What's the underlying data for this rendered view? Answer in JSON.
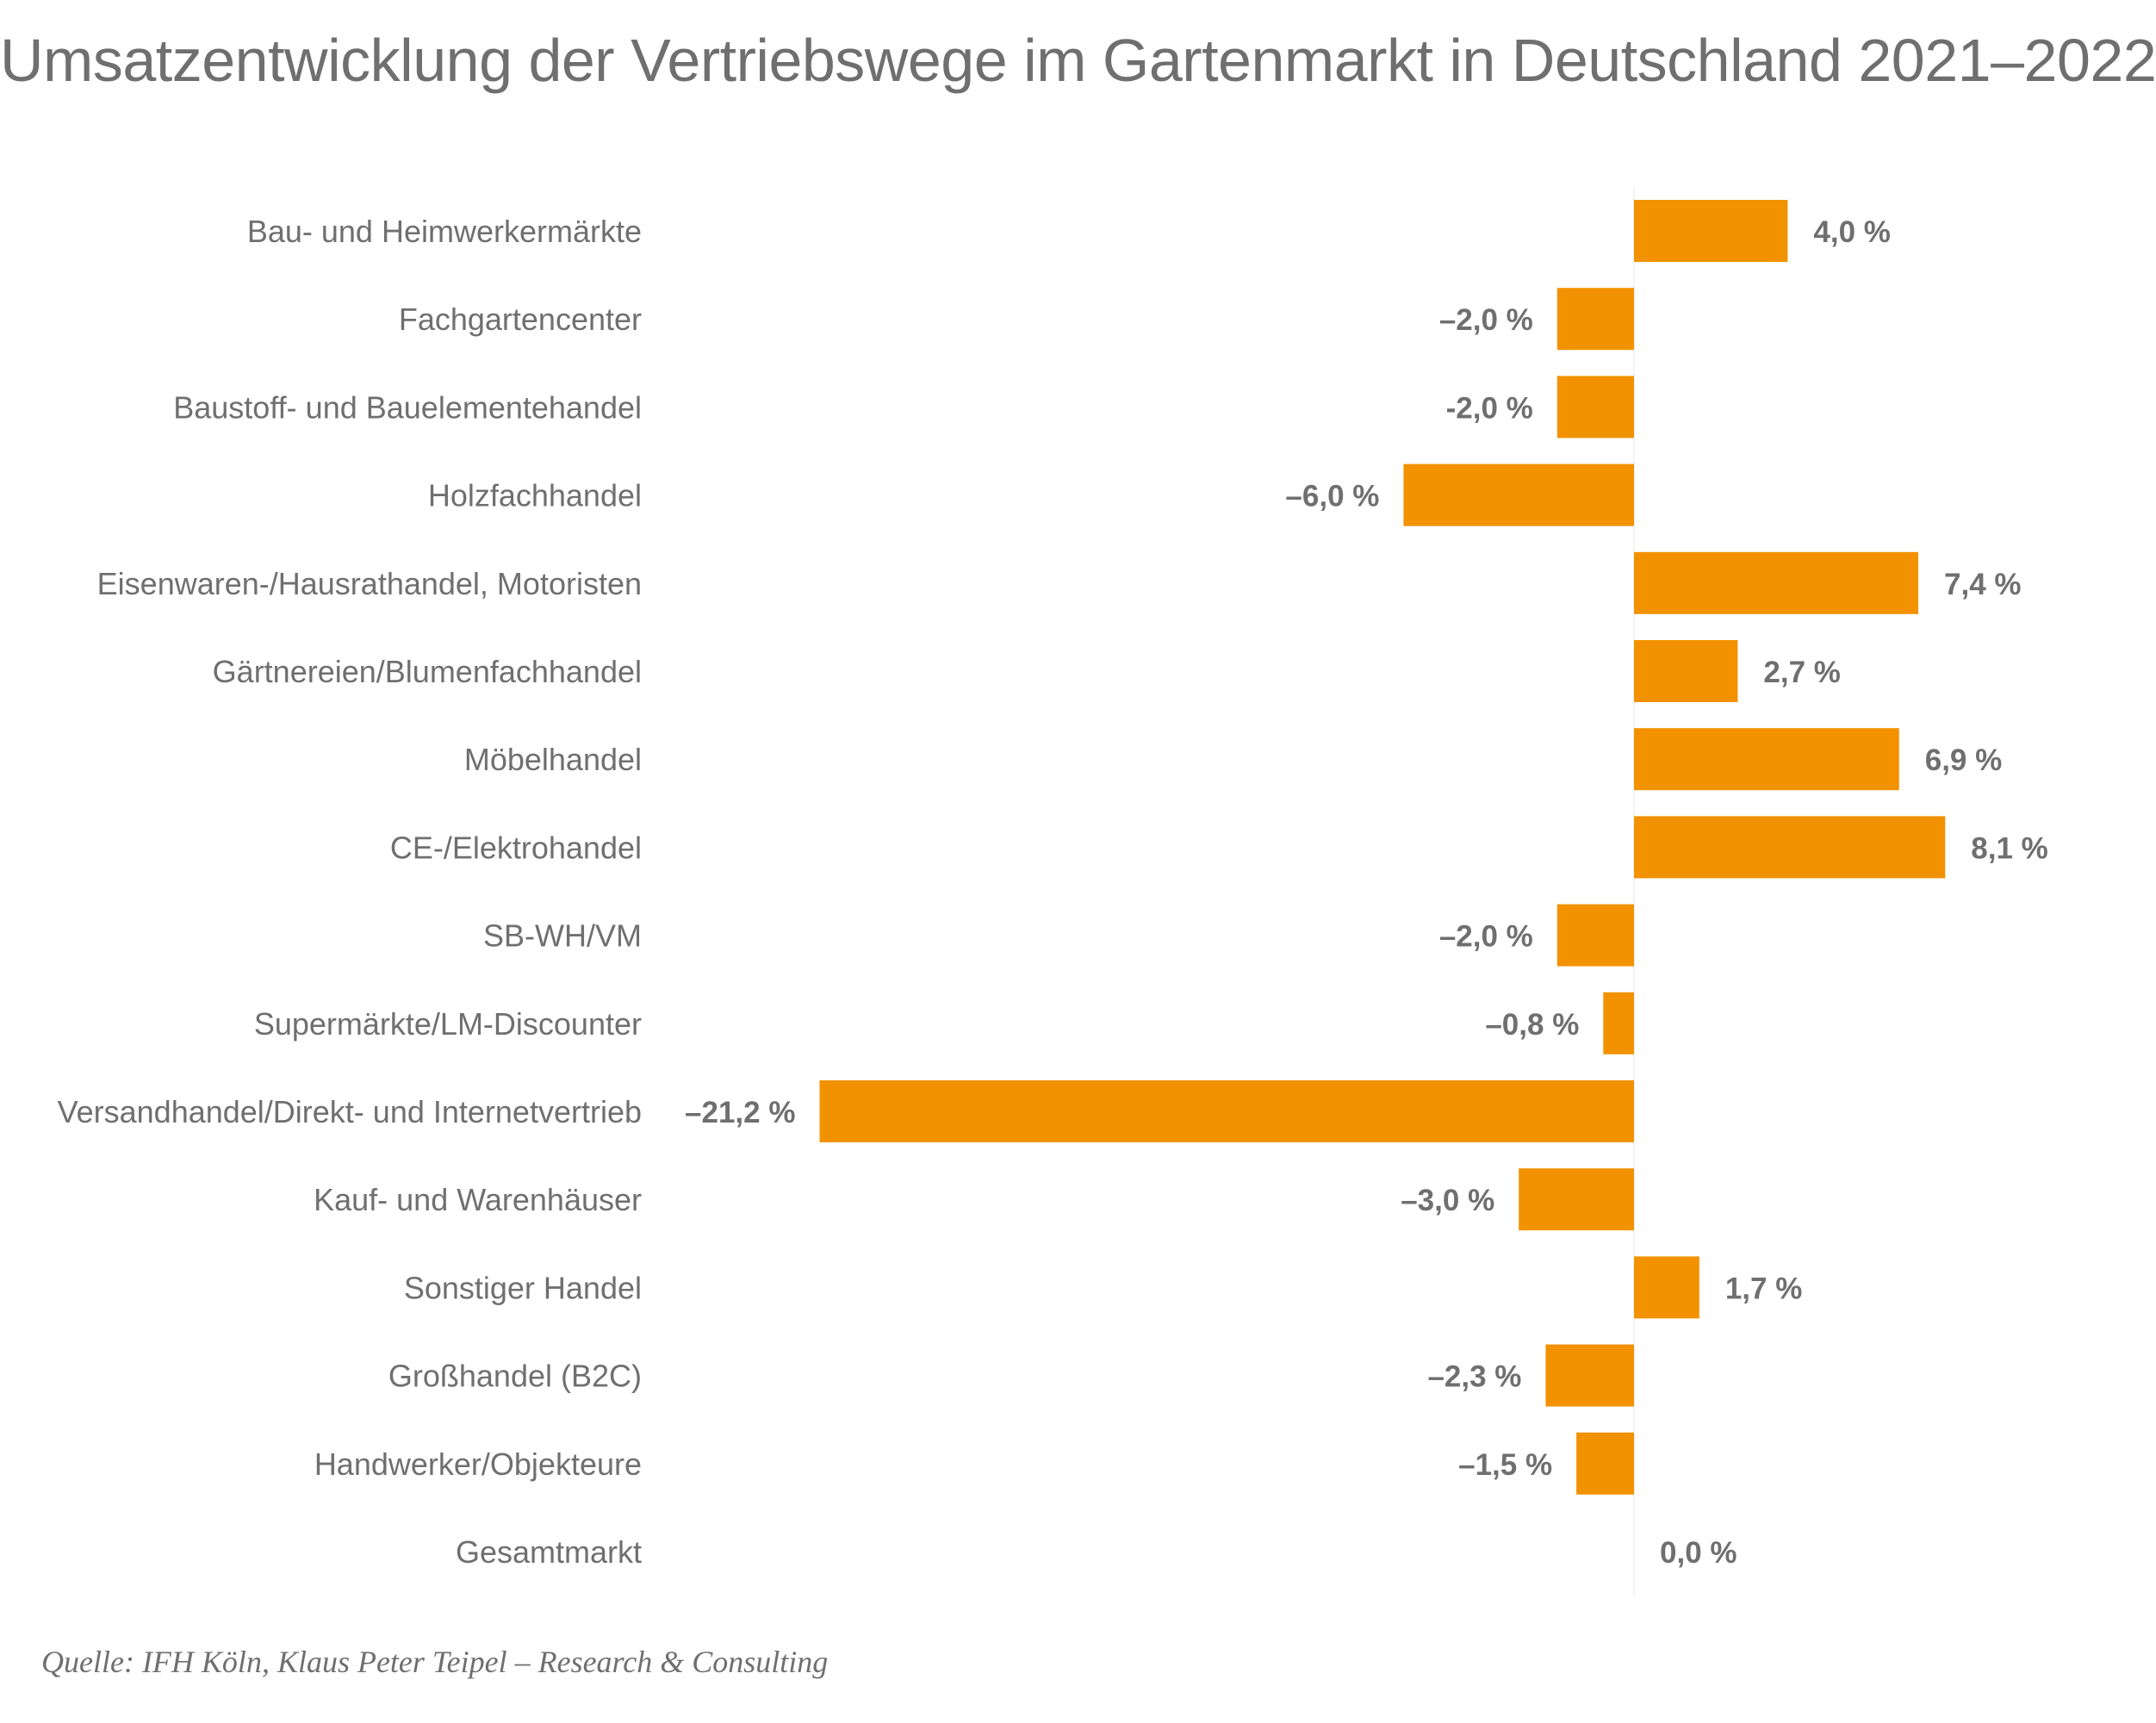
{
  "colors": {
    "bar": "#f29200",
    "text": "#6f6f6f"
  },
  "chart_data": {
    "type": "bar",
    "orientation": "horizontal",
    "title": "Umsatzentwicklung der Vertriebswege im Gartenmarkt in Deutschland 2021–2022",
    "source": "Quelle: IFH Köln, Klaus Peter Teipel – Research & Consulting",
    "grid": false,
    "legend": "none",
    "xlim": [
      -21.2,
      8.1
    ],
    "categories": [
      "Bau- und Heimwerkermärkte",
      "Fachgartencenter",
      "Baustoff- und Bauelementehandel",
      "Holzfachhandel",
      "Eisenwaren-/Hausrathandel, Motoristen",
      "Gärtnereien/Blumenfachhandel",
      "Möbelhandel",
      "CE-/Elektrohandel",
      "SB-WH/VM",
      "Supermärkte/LM-Discounter",
      "Versandhandel/Direkt- und Internetvertrieb",
      "Kauf- und Warenhäuser",
      "Sonstiger Handel",
      "Großhandel (B2C)",
      "Handwerker/Objekteure",
      "Gesamtmarkt"
    ],
    "values": [
      4.0,
      -2.0,
      -2.0,
      -6.0,
      7.4,
      2.7,
      6.9,
      8.1,
      -2.0,
      -0.8,
      -21.2,
      -3.0,
      1.7,
      -2.3,
      -1.5,
      0.0
    ],
    "value_labels": [
      "4,0 %",
      "–2,0 %",
      "-2,0 %",
      "–6,0 %",
      "7,4 %",
      "2,7 %",
      "6,9 %",
      "8,1 %",
      "–2,0 %",
      "–0,8 %",
      "–21,2 %",
      "–3,0 %",
      "1,7 %",
      "–2,3 %",
      "–1,5 %",
      "0,0 %"
    ]
  }
}
